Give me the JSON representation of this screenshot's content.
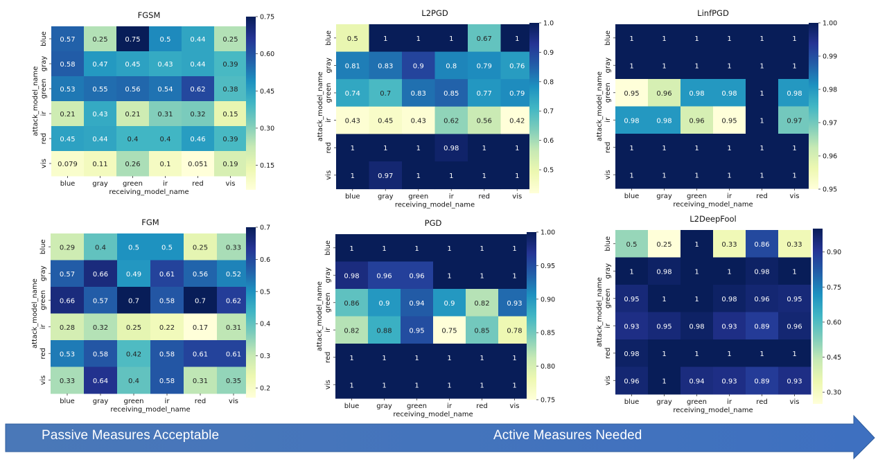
{
  "chart_data": [
    {
      "type": "heatmap",
      "title": "FGSM",
      "xlabel": "receiving_model_name",
      "ylabel": "attack_model_name",
      "x_categories": [
        "blue",
        "gray",
        "green",
        "ir",
        "red",
        "vis"
      ],
      "y_categories": [
        "blue",
        "gray",
        "green",
        "ir",
        "red",
        "vis"
      ],
      "values": [
        [
          0.57,
          0.25,
          0.75,
          0.5,
          0.44,
          0.25
        ],
        [
          0.58,
          0.47,
          0.45,
          0.43,
          0.44,
          0.39
        ],
        [
          0.53,
          0.55,
          0.56,
          0.54,
          0.62,
          0.38
        ],
        [
          0.21,
          0.43,
          0.21,
          0.31,
          0.32,
          0.15
        ],
        [
          0.45,
          0.44,
          0.4,
          0.4,
          0.46,
          0.39
        ],
        [
          0.079,
          0.11,
          0.26,
          0.1,
          0.051,
          0.19
        ]
      ],
      "value_labels": [
        [
          "0.57",
          "0.25",
          "0.75",
          "0.5",
          "0.44",
          "0.25"
        ],
        [
          "0.58",
          "0.47",
          "0.45",
          "0.43",
          "0.44",
          "0.39"
        ],
        [
          "0.53",
          "0.55",
          "0.56",
          "0.54",
          "0.62",
          "0.38"
        ],
        [
          "0.21",
          "0.43",
          "0.21",
          "0.31",
          "0.32",
          "0.15"
        ],
        [
          "0.45",
          "0.44",
          "0.4",
          "0.4",
          "0.46",
          "0.39"
        ],
        [
          "0.079",
          "0.11",
          "0.26",
          "0.1",
          "0.051",
          "0.19"
        ]
      ],
      "colorbar_range": [
        0.051,
        0.75
      ],
      "colorbar_ticks": [
        0.15,
        0.3,
        0.45,
        0.6,
        0.75
      ],
      "colorbar_tick_labels": [
        "0.15",
        "0.30",
        "0.45",
        "0.60",
        "0.75"
      ],
      "colormap": "YlGnBu",
      "empty_cells": []
    },
    {
      "type": "heatmap",
      "title": "L2PGD",
      "xlabel": "receiving_model_name",
      "ylabel": "attack_model_name",
      "x_categories": [
        "blue",
        "gray",
        "green",
        "ir",
        "red",
        "vis"
      ],
      "y_categories": [
        "blue",
        "gray",
        "green",
        "ir",
        "red",
        "vis"
      ],
      "values": [
        [
          0.5,
          1,
          1,
          1,
          0.67,
          1
        ],
        [
          0.81,
          0.83,
          0.9,
          0.8,
          0.79,
          0.76
        ],
        [
          0.74,
          0.7,
          0.83,
          0.85,
          0.77,
          0.79
        ],
        [
          0.43,
          0.45,
          0.43,
          0.62,
          0.56,
          0.42
        ],
        [
          1,
          1,
          1,
          0.98,
          1,
          1
        ],
        [
          1,
          0.97,
          1,
          1,
          1,
          1
        ]
      ],
      "value_labels": [
        [
          "0.5",
          "1",
          "1",
          "1",
          "0.67",
          "1"
        ],
        [
          "0.81",
          "0.83",
          "0.9",
          "0.8",
          "0.79",
          "0.76"
        ],
        [
          "0.74",
          "0.7",
          "0.83",
          "0.85",
          "0.77",
          "0.79"
        ],
        [
          "0.43",
          "0.45",
          "0.43",
          "0.62",
          "0.56",
          "0.42"
        ],
        [
          "1",
          "1",
          "1",
          "0.98",
          "1",
          "1"
        ],
        [
          "1",
          "0.97",
          "1",
          "1",
          "1",
          "1"
        ]
      ],
      "colorbar_range": [
        0.42,
        1.0
      ],
      "colorbar_ticks": [
        0.5,
        0.6,
        0.7,
        0.8,
        0.9,
        1.0
      ],
      "colorbar_tick_labels": [
        "0.5",
        "0.6",
        "0.7",
        "0.8",
        "0.9",
        "1.0"
      ],
      "colormap": "YlGnBu",
      "empty_cells": []
    },
    {
      "type": "heatmap",
      "title": "LinfPGD",
      "xlabel": "receiving_model_name",
      "ylabel": "attack_model_name",
      "x_categories": [
        "blue",
        "gray",
        "green",
        "ir",
        "red",
        "vis"
      ],
      "y_categories": [
        "blue",
        "gray",
        "green",
        "ir",
        "red",
        "vis"
      ],
      "values": [
        [
          1,
          1,
          1,
          1,
          1,
          1
        ],
        [
          1,
          1,
          1,
          1,
          1,
          1
        ],
        [
          0.95,
          0.96,
          0.98,
          0.98,
          1,
          0.98
        ],
        [
          0.98,
          0.98,
          0.96,
          0.95,
          1,
          0.97
        ],
        [
          1,
          1,
          1,
          1,
          1,
          1
        ],
        [
          1,
          1,
          1,
          1,
          1,
          1
        ]
      ],
      "value_labels": [
        [
          "1",
          "1",
          "1",
          "1",
          "1",
          "1"
        ],
        [
          "1",
          "1",
          "1",
          "1",
          "1",
          "1"
        ],
        [
          "0.95",
          "0.96",
          "0.98",
          "0.98",
          "1",
          "0.98"
        ],
        [
          "0.98",
          "0.98",
          "0.96",
          "0.95",
          "1",
          "0.97"
        ],
        [
          "1",
          "1",
          "1",
          "1",
          "1",
          "1"
        ],
        [
          "1",
          "1",
          "1",
          "1",
          "1",
          "1"
        ]
      ],
      "colorbar_range": [
        0.95,
        1.0
      ],
      "colorbar_ticks": [
        0.95,
        0.96,
        0.97,
        0.98,
        0.99,
        1.0
      ],
      "colorbar_tick_labels": [
        "0.95",
        "0.96",
        "0.97",
        "0.98",
        "0.99",
        "1.00"
      ],
      "colormap": "YlGnBu",
      "empty_cells": []
    },
    {
      "type": "heatmap",
      "title": "FGM",
      "xlabel": "receiving_model_name",
      "ylabel": "attack_model_name",
      "x_categories": [
        "blue",
        "gray",
        "green",
        "ir",
        "red",
        "vis"
      ],
      "y_categories": [
        "blue",
        "gray",
        "green",
        "ir",
        "red",
        "vis"
      ],
      "values": [
        [
          0.29,
          0.4,
          0.5,
          0.5,
          0.25,
          0.33
        ],
        [
          0.57,
          0.66,
          0.49,
          0.61,
          0.56,
          0.52
        ],
        [
          0.66,
          0.57,
          0.7,
          0.58,
          0.7,
          0.62
        ],
        [
          0.28,
          0.32,
          0.25,
          0.22,
          0.17,
          0.31
        ],
        [
          0.53,
          0.58,
          0.42,
          0.58,
          0.61,
          0.61
        ],
        [
          0.33,
          0.64,
          0.4,
          0.58,
          0.31,
          0.35
        ]
      ],
      "value_labels": [
        [
          "0.29",
          "0.4",
          "0.5",
          "0.5",
          "0.25",
          "0.33"
        ],
        [
          "0.57",
          "0.66",
          "0.49",
          "0.61",
          "0.56",
          "0.52"
        ],
        [
          "0.66",
          "0.57",
          "0.7",
          "0.58",
          "0.7",
          "0.62"
        ],
        [
          "0.28",
          "0.32",
          "0.25",
          "0.22",
          "0.17",
          "0.31"
        ],
        [
          "0.53",
          "0.58",
          "0.42",
          "0.58",
          "0.61",
          "0.61"
        ],
        [
          "0.33",
          "0.64",
          "0.4",
          "0.58",
          "0.31",
          "0.35"
        ]
      ],
      "colorbar_range": [
        0.17,
        0.7
      ],
      "colorbar_ticks": [
        0.2,
        0.3,
        0.4,
        0.5,
        0.6,
        0.7
      ],
      "colorbar_tick_labels": [
        "0.2",
        "0.3",
        "0.4",
        "0.5",
        "0.6",
        "0.7"
      ],
      "colormap": "YlGnBu",
      "empty_cells": []
    },
    {
      "type": "heatmap",
      "title": "PGD",
      "xlabel": "receiving_model_name",
      "ylabel": "attack_model_name",
      "x_categories": [
        "blue",
        "gray",
        "green",
        "ir",
        "red",
        "vis"
      ],
      "y_categories": [
        "blue",
        "gray",
        "green",
        "ir",
        "red",
        "vis"
      ],
      "values": [
        [
          1,
          1,
          1,
          1,
          1,
          1
        ],
        [
          0.98,
          0.96,
          0.96,
          1,
          1,
          1
        ],
        [
          0.86,
          0.9,
          0.94,
          0.9,
          0.82,
          0.93
        ],
        [
          0.82,
          0.88,
          0.95,
          0.75,
          0.85,
          0.78
        ],
        [
          1,
          1,
          1,
          1,
          1,
          1
        ],
        [
          1,
          1,
          1,
          1,
          1,
          1
        ]
      ],
      "value_labels": [
        [
          "1",
          "1",
          "1",
          "1",
          "1",
          "1"
        ],
        [
          "0.98",
          "0.96",
          "0.96",
          "1",
          "1",
          "1"
        ],
        [
          "0.86",
          "0.9",
          "0.94",
          "0.9",
          "0.82",
          "0.93"
        ],
        [
          "0.82",
          "0.88",
          "0.95",
          "0.75",
          "0.85",
          "0.78"
        ],
        [
          "1",
          "1",
          "1",
          "1",
          "1",
          "1"
        ],
        [
          "1",
          "1",
          "1",
          "1",
          "1",
          "1"
        ]
      ],
      "colorbar_range": [
        0.75,
        1.0
      ],
      "colorbar_ticks": [
        0.75,
        0.8,
        0.85,
        0.9,
        0.95,
        1.0
      ],
      "colorbar_tick_labels": [
        "0.75",
        "0.80",
        "0.85",
        "0.90",
        "0.95",
        "1.00"
      ],
      "colormap": "YlGnBu",
      "empty_cells": []
    },
    {
      "type": "heatmap",
      "title": "L2DeepFool",
      "xlabel": "receiving_model_name",
      "ylabel": "attack_model_name",
      "x_categories": [
        "blue",
        "gray",
        "green",
        "ir",
        "red",
        "vis"
      ],
      "y_categories": [
        "blue",
        "gray",
        "green",
        "ir",
        "red",
        "vis"
      ],
      "values": [
        [
          0.5,
          0.25,
          1,
          0.33,
          0.86,
          0.33
        ],
        [
          1,
          0.98,
          1,
          1,
          0.98,
          1
        ],
        [
          0.95,
          1,
          1,
          0.98,
          0.96,
          0.95
        ],
        [
          0.93,
          0.95,
          0.98,
          0.93,
          0.89,
          0.96
        ],
        [
          0.98,
          1,
          1,
          1,
          1,
          1
        ],
        [
          0.96,
          1,
          0.94,
          0.93,
          0.89,
          0.93
        ]
      ],
      "value_labels": [
        [
          "0.5",
          "0.25",
          "1",
          "0.33",
          "0.86",
          "0.33"
        ],
        [
          "1",
          "0.98",
          "1",
          "1",
          "0.98",
          "1"
        ],
        [
          "0.95",
          "1",
          "1",
          "0.98",
          "0.96",
          "0.95"
        ],
        [
          "0.93",
          "0.95",
          "0.98",
          "0.93",
          "0.89",
          "0.96"
        ],
        [
          "0.98",
          "1",
          "1",
          "1",
          "1",
          "1"
        ],
        [
          "0.96",
          "1",
          "0.94",
          "0.93",
          "0.89",
          "0.93"
        ]
      ],
      "colorbar_range": [
        0.25,
        1.0
      ],
      "colorbar_ticks": [
        0.3,
        0.45,
        0.6,
        0.75,
        0.9
      ],
      "colorbar_tick_labels": [
        "0.30",
        "0.45",
        "0.60",
        "0.75",
        "0.90"
      ],
      "colormap": "YlGnBu",
      "empty_cells": []
    }
  ],
  "banner": {
    "left_label": "Passive Measures Acceptable",
    "right_label": "Active Measures Needed",
    "gradient_start": "#4a78b8",
    "gradient_end": "#3e70c0"
  },
  "colors": {
    "colormap_stops": [
      "#ffffd9",
      "#edf8b1",
      "#c7e9b4",
      "#7fcdbb",
      "#41b6c4",
      "#1d91c0",
      "#225ea8",
      "#253494",
      "#081d58"
    ]
  }
}
